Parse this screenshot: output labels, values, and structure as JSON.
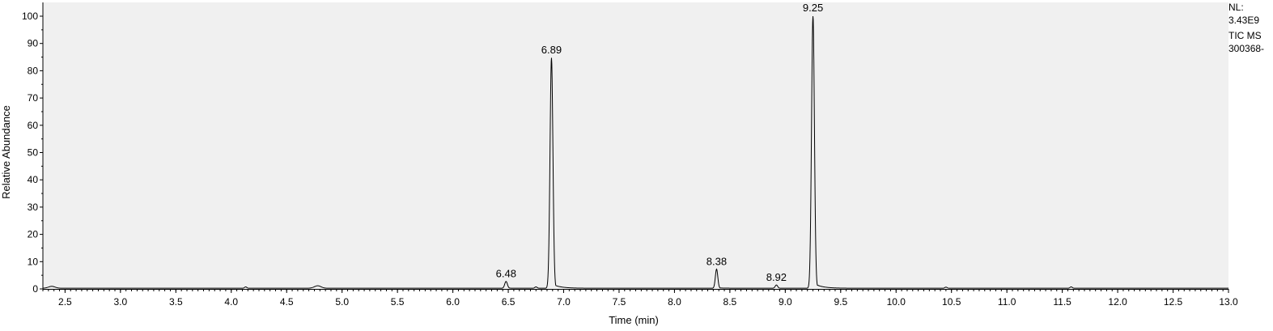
{
  "chart_data": {
    "type": "line",
    "xlabel": "Time (min)",
    "ylabel": "Relative Abundance",
    "xlim": [
      2.3,
      13.0
    ],
    "ylim": [
      0,
      100
    ],
    "x_ticks": [
      "2.5",
      "3.0",
      "3.5",
      "4.0",
      "4.5",
      "5.0",
      "5.5",
      "6.0",
      "6.5",
      "7.0",
      "7.5",
      "8.0",
      "8.5",
      "9.0",
      "9.5",
      "10.0",
      "10.5",
      "11.0",
      "11.5",
      "12.0",
      "12.5",
      "13.0"
    ],
    "y_ticks": [
      "0",
      "10",
      "20",
      "30",
      "40",
      "50",
      "60",
      "70",
      "80",
      "90",
      "100"
    ],
    "peaks": [
      {
        "rt": 6.48,
        "label": "6.48",
        "height": 2.5,
        "width": 0.012
      },
      {
        "rt": 6.89,
        "label": "6.89",
        "height": 84.5,
        "width": 0.013
      },
      {
        "rt": 8.38,
        "label": "8.38",
        "height": 7.0,
        "width": 0.011
      },
      {
        "rt": 8.92,
        "label": "8.92",
        "height": 1.2,
        "width": 0.011
      },
      {
        "rt": 9.25,
        "label": "9.25",
        "height": 100,
        "width": 0.013
      }
    ],
    "grid": false,
    "plot_background": "#f0f0f0",
    "line_color": "#000000"
  },
  "side_info": {
    "nl_label": "NL:",
    "nl_value": "3.43E9",
    "trace": "TIC  MS",
    "file": "300368-"
  }
}
